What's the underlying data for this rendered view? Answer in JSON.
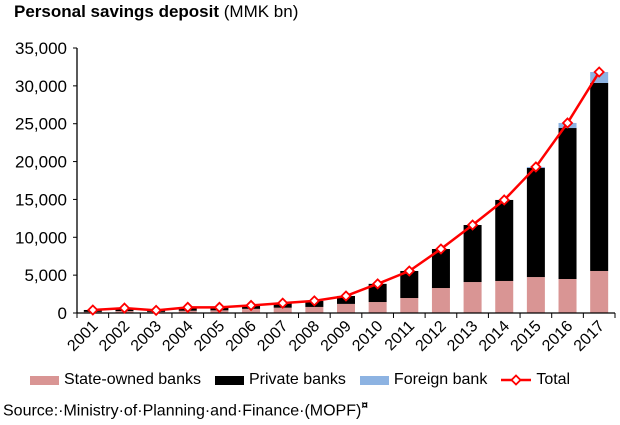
{
  "chart_data": {
    "type": "bar",
    "stacked": true,
    "title": "Personal savings deposit",
    "title_unit": "(MMK bn)",
    "xlabel": "",
    "ylabel": "",
    "ylim": [
      0,
      35000
    ],
    "yticks": [
      0,
      5000,
      10000,
      15000,
      20000,
      25000,
      30000,
      35000
    ],
    "ytick_labels": [
      "0",
      "5,000",
      "10,000",
      "15,000",
      "20,000",
      "25,000",
      "30,000",
      "35,000"
    ],
    "grid": false,
    "legend_position": "bottom",
    "categories": [
      "2001",
      "2002",
      "2003",
      "2004",
      "2005",
      "2006",
      "2007",
      "2008",
      "2009",
      "2010",
      "2011",
      "2012",
      "2013",
      "2014",
      "2015",
      "2016",
      "2017"
    ],
    "series": [
      {
        "name": "State-owned banks",
        "kind": "bar",
        "color": "#d99594",
        "values": [
          150,
          250,
          150,
          300,
          350,
          550,
          700,
          800,
          1200,
          1450,
          1980,
          3300,
          4090,
          4230,
          4750,
          4490,
          5550
        ]
      },
      {
        "name": "Private banks",
        "kind": "bar",
        "color": "#000000",
        "values": [
          250,
          400,
          200,
          450,
          400,
          450,
          600,
          800,
          1050,
          2400,
          3570,
          5150,
          7530,
          10700,
          14400,
          19940,
          24830
        ]
      },
      {
        "name": "Foreign bank",
        "kind": "bar",
        "color": "#8db3e2",
        "values": [
          0,
          0,
          0,
          0,
          0,
          0,
          0,
          0,
          0,
          0,
          0,
          0,
          0,
          0,
          140,
          670,
          1450
        ]
      },
      {
        "name": "Total",
        "kind": "line",
        "color": "#ff0000",
        "values": [
          400,
          650,
          350,
          750,
          750,
          1000,
          1300,
          1600,
          2250,
          3850,
          5550,
          8450,
          11620,
          14930,
          19290,
          25100,
          31830
        ]
      }
    ]
  },
  "legend": {
    "items": [
      "State-owned banks",
      "Private banks",
      "Foreign bank",
      "Total"
    ]
  },
  "source": {
    "text": "Source:·Ministry·of·Planning·and·Finance·(MOPF)",
    "mark": "¤"
  }
}
